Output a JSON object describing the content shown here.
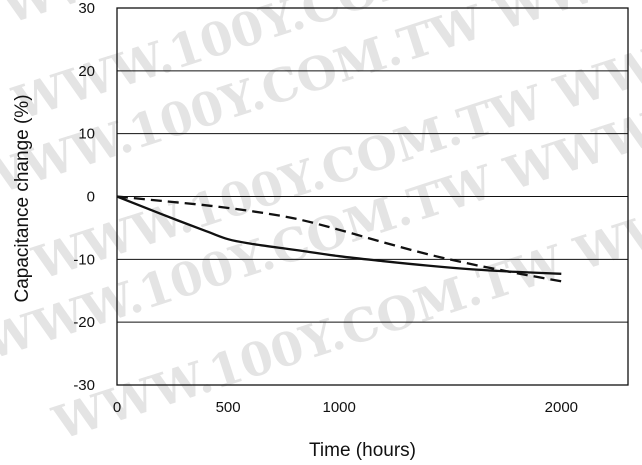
{
  "watermark": "WWW.100Y.COM.TW",
  "chart_data": {
    "type": "line",
    "title": "",
    "xlabel": "Time (hours)",
    "ylabel": "Capacitance change (%)",
    "xlim": [
      0,
      2300
    ],
    "ylim": [
      -30,
      30
    ],
    "xticks": [
      0,
      500,
      1000,
      2000
    ],
    "xtick_labels": [
      "0",
      "500",
      "1000",
      "2000"
    ],
    "yticks": [
      30,
      20,
      10,
      0,
      -10,
      -20,
      -30
    ],
    "ytick_labels": [
      "30",
      "20",
      "10",
      "0",
      "-10",
      "-20",
      "-30"
    ],
    "grid": "horizontal",
    "legend": "none",
    "series": [
      {
        "style": "solid",
        "color": "#111111",
        "x": [
          0,
          200,
          400,
          500,
          600,
          800,
          1000,
          1200,
          1400,
          1600,
          1800,
          2000
        ],
        "y": [
          0,
          -2.8,
          -5.5,
          -6.8,
          -7.5,
          -8.5,
          -9.5,
          -10.3,
          -11.0,
          -11.6,
          -12.0,
          -12.3
        ]
      },
      {
        "style": "dashed",
        "color": "#111111",
        "x": [
          0,
          200,
          400,
          600,
          800,
          1000,
          1200,
          1400,
          1600,
          1800,
          2000
        ],
        "y": [
          0,
          -0.7,
          -1.4,
          -2.3,
          -3.5,
          -5.3,
          -7.3,
          -9.2,
          -10.8,
          -12.2,
          -13.5
        ]
      }
    ]
  }
}
